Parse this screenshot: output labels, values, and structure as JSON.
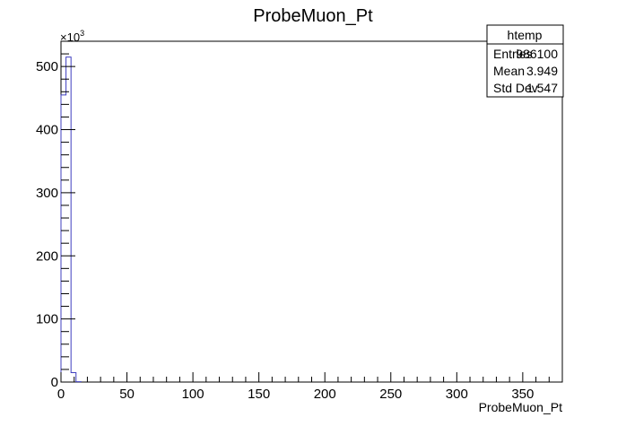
{
  "chart_data": {
    "type": "bar",
    "title": "ProbeMuon_Pt",
    "xlabel": "ProbeMuon_Pt",
    "ylabel": "",
    "y_multiplier_label": "×10",
    "y_multiplier_exp": "3",
    "xlim": [
      0,
      380
    ],
    "ylim": [
      0,
      540
    ],
    "x_ticks": [
      0,
      50,
      100,
      150,
      200,
      250,
      300,
      350
    ],
    "y_ticks": [
      0,
      100,
      200,
      300,
      400,
      500
    ],
    "bin_width": 3.8,
    "series": [
      {
        "line_color": "#3f3fbf",
        "bins": [
          {
            "x0": 0.0,
            "x1": 3.8,
            "value": 455
          },
          {
            "x0": 3.8,
            "x1": 7.6,
            "value": 515
          },
          {
            "x0": 7.6,
            "x1": 11.4,
            "value": 15
          },
          {
            "x0": 11.4,
            "x1": 15.2,
            "value": 0.5
          }
        ]
      }
    ],
    "stats_box": {
      "name": "htemp",
      "rows": [
        {
          "label": "Entries",
          "value": "986100"
        },
        {
          "label": "Mean",
          "value": "3.949"
        },
        {
          "label": "Std Dev",
          "value": "1.547"
        }
      ]
    }
  }
}
